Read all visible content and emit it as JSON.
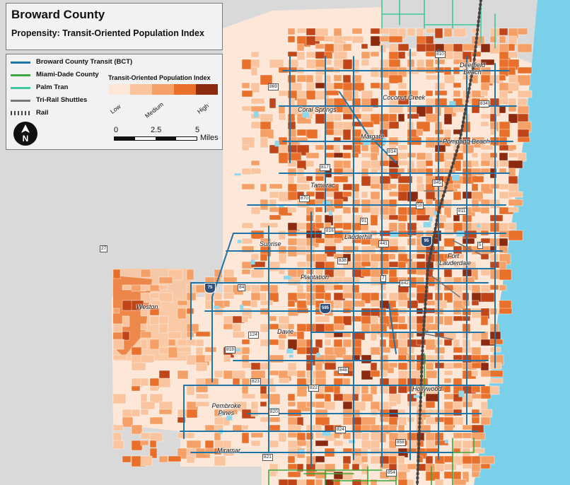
{
  "title": "Broward County",
  "subtitle": "Propensity: Transit-Oriented Population Index",
  "legend": {
    "routes": [
      {
        "label": "Broward County Transit (BCT)",
        "color": "#1f74a8",
        "style": "solid"
      },
      {
        "label": "Miami-Dade County",
        "color": "#3aa83a",
        "style": "solid"
      },
      {
        "label": "Palm Tran",
        "color": "#3fc7a0",
        "style": "solid"
      },
      {
        "label": "Tri-Rail Shuttles",
        "color": "#777777",
        "style": "solid"
      },
      {
        "label": "Rail",
        "color": "#444444",
        "style": "rail"
      }
    ],
    "index_title": "Transit-Oriented Population Index",
    "ramp_colors": [
      "#fde7d9",
      "#f9c49e",
      "#f5a066",
      "#e8702b",
      "#c0461a",
      "#8c2a10"
    ],
    "ramp_labels": [
      "Low",
      "Medium",
      "High"
    ],
    "scale": {
      "ticks": [
        "0",
        "2.5",
        "5"
      ],
      "unit": "Miles"
    }
  },
  "colors": {
    "ocean": "#7ad0e8",
    "outside": "#d9d9d9"
  },
  "places": [
    "Deerfield Beach",
    "Coconut Creek",
    "Coral Springs",
    "Margate",
    "Pompano Beach",
    "Tamarac",
    "Lauderhill",
    "Sunrise",
    "Fort Lauderdale",
    "Plantation",
    "Weston",
    "Davie",
    "Hollywood",
    "Pembroke Pines",
    "Miramar"
  ],
  "route_shields": [
    "810",
    "869",
    "834",
    "814",
    "817",
    "845",
    "870",
    "50",
    "811",
    "91",
    "816",
    "441",
    "95",
    "5",
    "838",
    "7",
    "842",
    "84",
    "75",
    "595",
    "27",
    "124",
    "818",
    "823",
    "848",
    "822",
    "820",
    "824",
    "858",
    "821",
    "854"
  ]
}
